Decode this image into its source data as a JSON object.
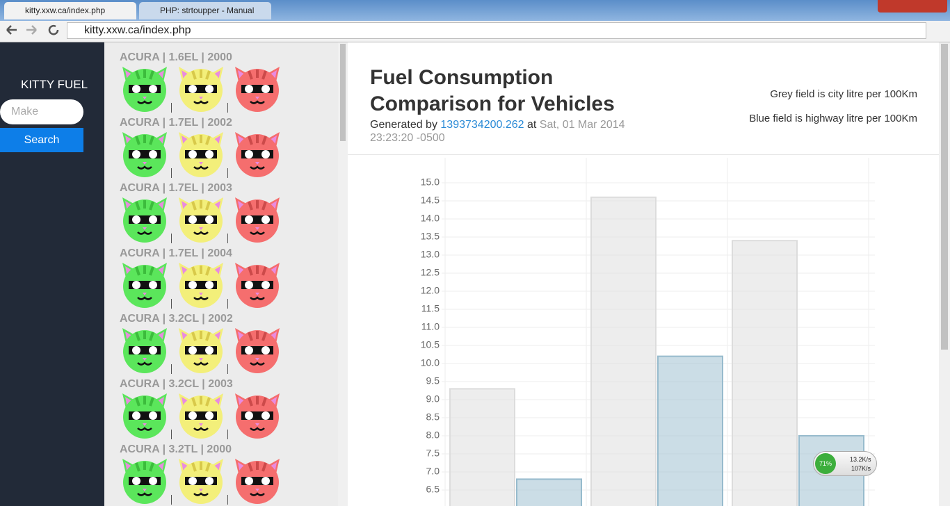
{
  "browser": {
    "tabs": [
      "kitty.xxw.ca/index.php",
      "PHP: strtoupper - Manual"
    ],
    "url": "kitty.xxw.ca/index.php"
  },
  "sidebar": {
    "brand": "KITTY FUEL",
    "search_placeholder": "Make",
    "search_button": "Search"
  },
  "vehicles": [
    "ACURA | 1.6EL | 2000",
    "ACURA | 1.7EL | 2002",
    "ACURA | 1.7EL | 2003",
    "ACURA | 1.7EL | 2004",
    "ACURA | 3.2CL | 2002",
    "ACURA | 3.2CL | 2003",
    "ACURA | 3.2TL | 2000"
  ],
  "header": {
    "title": "Fuel Consumption Comparison for Vehicles",
    "generated_prefix": "Generated by",
    "generated_id": "1393734200.262",
    "generated_at_word": "at",
    "generated_time": "Sat, 01 Mar 2014 23:23:20 -0500",
    "legend_notes": [
      "Grey field is city litre per 100Km",
      "Blue field is highway litre per 100Km"
    ]
  },
  "chart_data": {
    "type": "bar",
    "categories": [
      null,
      null,
      null
    ],
    "series": [
      {
        "color": "#dcdcdc",
        "values": [
          9.3,
          14.6,
          13.4
        ]
      },
      {
        "color": "#97bbcd",
        "values": [
          6.8,
          10.2,
          8.0
        ]
      }
    ],
    "ylim": [
      6,
      15.5
    ],
    "yticks": [
      6.5,
      {
        "value": 7,
        "label": "7.0"
      },
      7.5,
      {
        "value": 8,
        "label": "8.0"
      },
      8.5,
      {
        "value": 9,
        "label": "9.0"
      },
      9.5,
      {
        "value": 10,
        "label": "10.0"
      },
      10.5,
      {
        "value": 11,
        "label": "11.0"
      },
      11.5,
      {
        "value": 12,
        "label": "12.0"
      },
      12.5,
      {
        "value": 13,
        "label": "13.0"
      },
      13.5,
      {
        "value": 14,
        "label": "14.0"
      },
      14.5,
      {
        "value": 15,
        "label": "15.0"
      }
    ],
    "grid": true
  },
  "network_widget": {
    "percent": "71%",
    "upload": "13.2K/s",
    "download": "107K/s"
  }
}
